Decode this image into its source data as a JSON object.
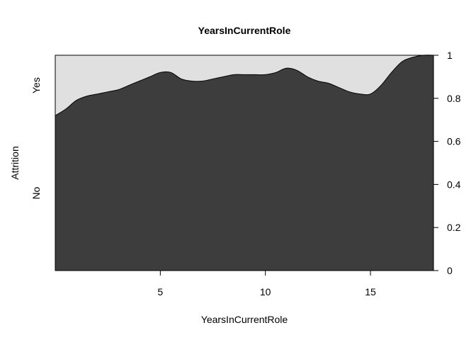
{
  "chart_data": {
    "type": "area",
    "subtype": "conditional density plot",
    "title": "YearsInCurrentRole",
    "xlabel": "YearsInCurrentRole",
    "ylabel": "Attrition",
    "xlim": [
      0,
      18
    ],
    "ylim": [
      0,
      1
    ],
    "x_ticks": [
      "5",
      "10",
      "15"
    ],
    "x_tick_values": [
      5,
      10,
      15
    ],
    "y_ticks_right": [
      "0",
      "0.2",
      "0.4",
      "0.6",
      "0.8",
      "1"
    ],
    "y_tick_values": [
      0,
      0.2,
      0.4,
      0.6,
      0.8,
      1
    ],
    "categories": [
      "No",
      "Yes"
    ],
    "colors": {
      "No": "#3d3d3d",
      "Yes": "#e0e0e0"
    },
    "boundary": {
      "x": [
        0,
        0.5,
        1,
        1.5,
        2,
        2.5,
        3,
        3.5,
        4,
        4.5,
        5,
        5.5,
        6,
        6.5,
        7,
        7.5,
        8,
        8.5,
        9,
        9.5,
        10,
        10.5,
        11,
        11.5,
        12,
        12.5,
        13,
        13.5,
        14,
        14.5,
        15,
        15.5,
        16,
        16.5,
        17,
        17.5,
        18
      ],
      "y": [
        0.72,
        0.75,
        0.79,
        0.81,
        0.82,
        0.83,
        0.84,
        0.86,
        0.88,
        0.9,
        0.92,
        0.92,
        0.89,
        0.88,
        0.88,
        0.89,
        0.9,
        0.91,
        0.91,
        0.91,
        0.91,
        0.92,
        0.94,
        0.93,
        0.9,
        0.88,
        0.87,
        0.85,
        0.83,
        0.82,
        0.82,
        0.86,
        0.92,
        0.97,
        0.99,
        1.0,
        1.0
      ]
    }
  }
}
